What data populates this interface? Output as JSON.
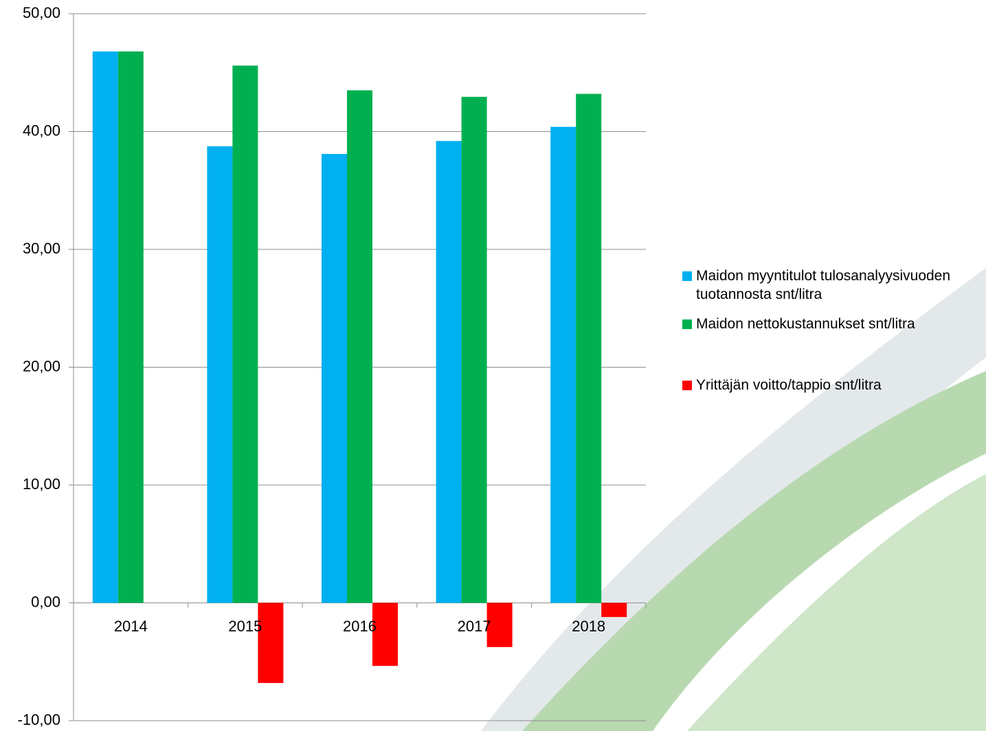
{
  "chart_data": {
    "type": "bar",
    "categories": [
      "2014",
      "2015",
      "2016",
      "2017",
      "2018"
    ],
    "series": [
      {
        "name": "Maidon myyntitulot tulosanalyysivuoden tuotannosta snt/litra",
        "color": "#00b0f0",
        "values": [
          46.8,
          38.75,
          38.1,
          39.2,
          40.4
        ]
      },
      {
        "name": "Maidon nettokustannukset snt/litra",
        "color": "#00b050",
        "values": [
          46.8,
          45.6,
          43.5,
          42.95,
          43.2
        ]
      },
      {
        "name": "Yrittäjän voitto/tappio snt/litra",
        "color": "#ff0000",
        "values": [
          0,
          -6.8,
          -5.35,
          -3.75,
          -1.2
        ]
      }
    ],
    "ylim": [
      -10,
      50
    ],
    "yticks": [
      {
        "value": -10,
        "label": "-10,00"
      },
      {
        "value": 0,
        "label": "0,00"
      },
      {
        "value": 10,
        "label": "10,00"
      },
      {
        "value": 20,
        "label": "20,00"
      },
      {
        "value": 30,
        "label": "30,00"
      },
      {
        "value": 40,
        "label": "40,00"
      },
      {
        "value": 50,
        "label": "50,00"
      }
    ],
    "grid": true
  }
}
